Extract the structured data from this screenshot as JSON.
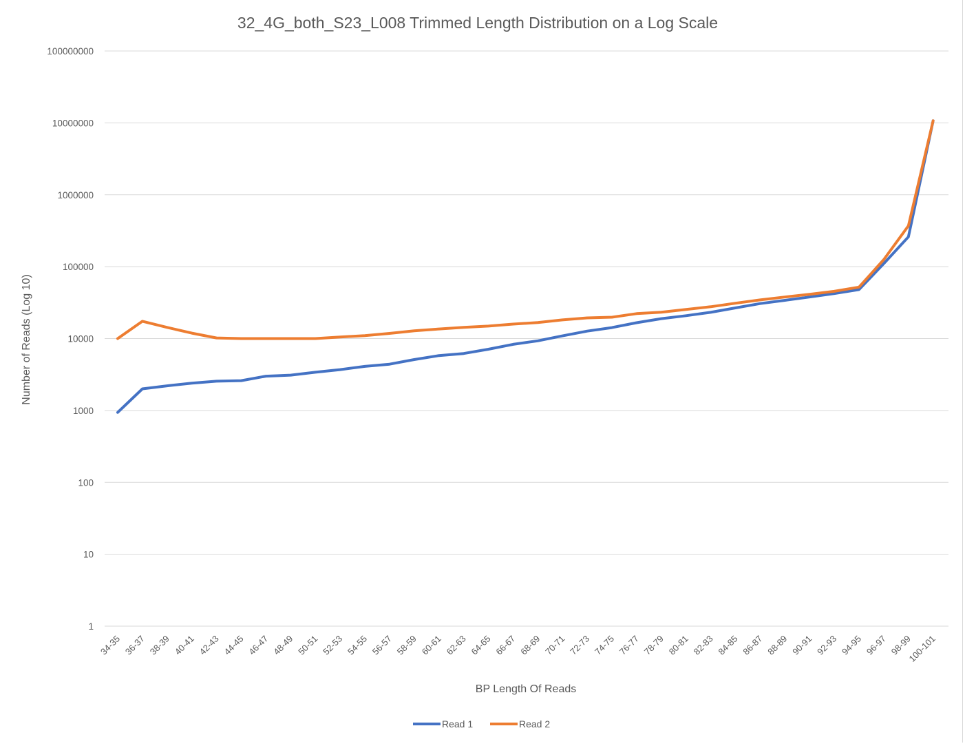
{
  "chart_data": {
    "type": "line",
    "title": "32_4G_both_S23_L008 Trimmed Length Distribution on a Log Scale",
    "xlabel": "BP Length Of Reads",
    "ylabel": "Number of Reads (Log 10)",
    "yscale": "log",
    "ylim": [
      1,
      100000000
    ],
    "yticks": [
      1,
      10,
      100,
      1000,
      10000,
      100000,
      1000000,
      10000000,
      100000000
    ],
    "ytick_labels": [
      "1",
      "10",
      "100",
      "1000",
      "10000",
      "100000",
      "1000000",
      "10000000",
      "100000000"
    ],
    "grid": true,
    "legend_position": "bottom-center",
    "categories": [
      "34-35",
      "36-37",
      "38-39",
      "40-41",
      "42-43",
      "44-45",
      "46-47",
      "48-49",
      "50-51",
      "52-53",
      "54-55",
      "56-57",
      "58-59",
      "60-61",
      "62-63",
      "64-65",
      "66-67",
      "68-69",
      "70-71",
      "72-73",
      "74-75",
      "76-77",
      "78-79",
      "80-81",
      "82-83",
      "84-85",
      "86-87",
      "88-89",
      "90-91",
      "92-93",
      "94-95",
      "96-97",
      "98-99",
      "100-101"
    ],
    "series": [
      {
        "name": "Read 1",
        "color": "#4472c4",
        "values": [
          940,
          2000,
          2200,
          2400,
          2550,
          2600,
          3000,
          3100,
          3400,
          3700,
          4100,
          4400,
          5100,
          5800,
          6200,
          7100,
          8300,
          9300,
          10900,
          12700,
          14200,
          16600,
          18900,
          20800,
          23200,
          26700,
          30700,
          34000,
          37800,
          42200,
          48000,
          110000,
          260000,
          10700000
        ]
      },
      {
        "name": "Read 2",
        "color": "#ed7d31",
        "values": [
          10000,
          17400,
          14300,
          11900,
          10200,
          10000,
          10000,
          10000,
          10000,
          10500,
          11000,
          11800,
          12800,
          13600,
          14300,
          14900,
          15900,
          16700,
          18200,
          19400,
          19800,
          22200,
          23300,
          25400,
          27700,
          31000,
          34500,
          37800,
          41300,
          45400,
          52000,
          125000,
          370000,
          10700000
        ]
      }
    ]
  }
}
